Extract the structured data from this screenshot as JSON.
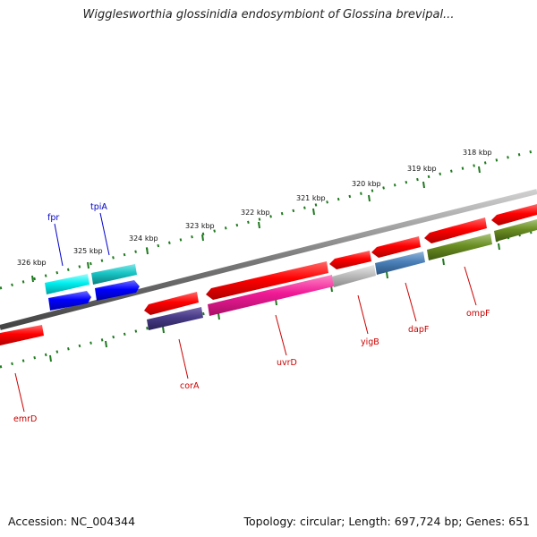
{
  "title": "Wigglesworthia glossinidia endosymbiont of Glossina brevipal...",
  "footer": {
    "accession": "Accession: NC_004344",
    "summary": "Topology: circular; Length: 697,724 bp; Genes: 651"
  },
  "colors": {
    "backbone": "#7a7a7a",
    "ticks": "#1e7a1e",
    "forward_label": "#0000cc",
    "reverse_label": "#cc0000"
  },
  "scale_labels": [
    "326 kbp",
    "325 kbp",
    "324 kbp",
    "323 kbp",
    "322 kbp",
    "321 kbp",
    "320 kbp",
    "319 kbp",
    "318 kbp"
  ],
  "genes": [
    {
      "name": "fpr",
      "strand": "forward",
      "color": "#00e5e5"
    },
    {
      "name": "tpiA",
      "strand": "forward",
      "color": "#10c0c0"
    },
    {
      "name": "",
      "strand": "forward",
      "color": "#1a1aff"
    },
    {
      "name": "",
      "strand": "forward",
      "color": "#1a1aff"
    },
    {
      "name": "corA",
      "strand": "reverse",
      "color": "#e01010"
    },
    {
      "name": "uvrD",
      "strand": "reverse",
      "color": "#e01010"
    },
    {
      "name": "yigB",
      "strand": "reverse",
      "color": "#e01010"
    },
    {
      "name": "dapF",
      "strand": "reverse",
      "color": "#e01010"
    },
    {
      "name": "ompF",
      "strand": "reverse",
      "color": "#e01010"
    },
    {
      "name": "emrD",
      "strand": "reverse",
      "color": "#e01010"
    }
  ]
}
